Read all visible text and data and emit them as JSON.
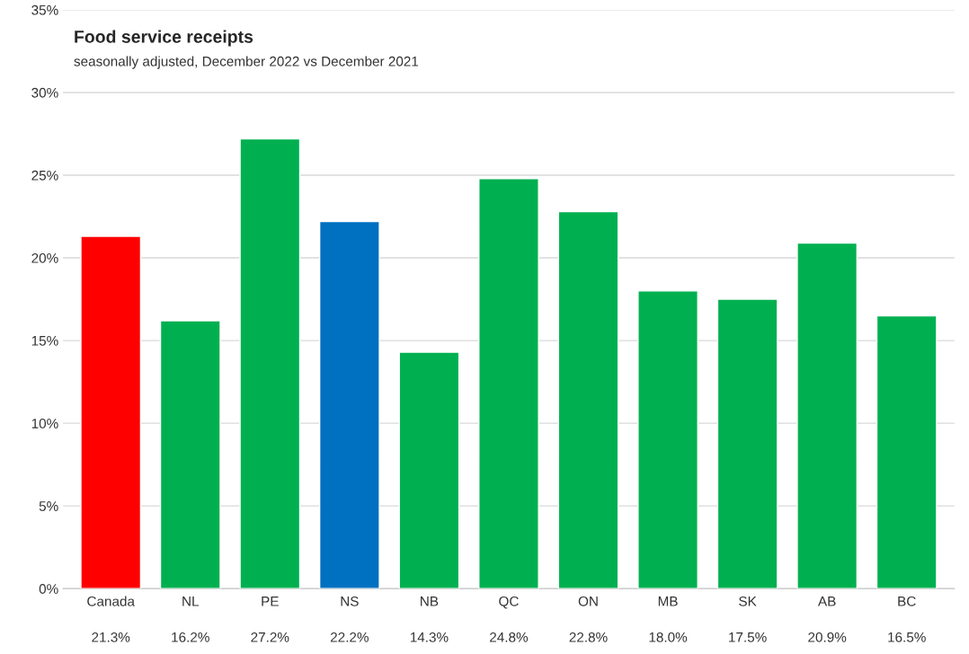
{
  "chart_data": {
    "type": "bar",
    "title": "Food service receipts",
    "subtitle": "seasonally adjusted, December 2022 vs December 2021",
    "categories": [
      "Canada",
      "NL",
      "PE",
      "NS",
      "NB",
      "QC",
      "ON",
      "MB",
      "SK",
      "AB",
      "BC"
    ],
    "values": [
      21.3,
      16.2,
      27.2,
      22.2,
      14.3,
      24.8,
      22.8,
      18.0,
      17.5,
      20.9,
      16.5
    ],
    "value_labels": [
      "21.3%",
      "16.2%",
      "27.2%",
      "22.2%",
      "14.3%",
      "24.8%",
      "22.8%",
      "18.0%",
      "17.5%",
      "20.9%",
      "16.5%"
    ],
    "colors": [
      "#ff0000",
      "#00b050",
      "#00b050",
      "#0070c0",
      "#00b050",
      "#00b050",
      "#00b050",
      "#00b050",
      "#00b050",
      "#00b050",
      "#00b050"
    ],
    "ylim": [
      0,
      35
    ],
    "yticks": [
      {
        "value": 0,
        "label": "0%"
      },
      {
        "value": 5,
        "label": "5%"
      },
      {
        "value": 10,
        "label": "10%"
      },
      {
        "value": 15,
        "label": "15%"
      },
      {
        "value": 20,
        "label": "20%"
      },
      {
        "value": 25,
        "label": "25%"
      },
      {
        "value": 30,
        "label": "30%"
      },
      {
        "value": 35,
        "label": "35%"
      }
    ],
    "grid": "y",
    "legend": false
  }
}
